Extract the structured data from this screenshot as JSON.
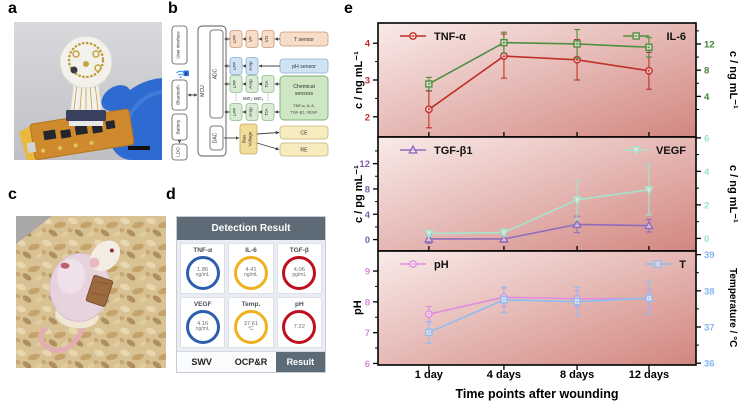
{
  "panel_labels": {
    "a": "a",
    "b": "b",
    "c": "c",
    "d": "d",
    "e": "e"
  },
  "panel_b": {
    "user_interface": "User interface",
    "bluetooth": "Bluetooth",
    "battery": "Battery",
    "ldo": "LDO",
    "mcu": "MCU",
    "adc": "ADC",
    "dac": "DAC",
    "lpf": "LPF",
    "vf": "VF",
    "vd": "VD",
    "amp": "Amp",
    "tia": "TIA",
    "t_sensor": "T sensor",
    "ph_sensor": "pH sensor",
    "chem_line1": "Chemical",
    "chem_line2": "sensors",
    "chem_sub1": "TNF-α, IL-6,",
    "chem_sub2": "TGF-β1, VEGF",
    "we": "WE₁-WE₄",
    "bias_line1": "Bias",
    "bias_line2": "Voltage",
    "ce": "CE",
    "re": "RE"
  },
  "panel_d": {
    "title": "Detection Result",
    "cards": [
      {
        "label": "TNF-α",
        "value": "1.86",
        "unit": "ng/mL",
        "ring": "#2d5fae"
      },
      {
        "label": "IL-6",
        "value": "4.41",
        "unit": "ng/mL",
        "ring": "#f0b11d"
      },
      {
        "label": "TGF-β",
        "value": "4.06",
        "unit": "pg/mL",
        "ring": "#bf0f1e"
      },
      {
        "label": "VEGF",
        "value": "4.16",
        "unit": "ng/mL",
        "ring": "#2d5fae"
      },
      {
        "label": "Temp.",
        "value": "37.61",
        "unit": "°C",
        "ring": "#f0b11d"
      },
      {
        "label": "pH",
        "value": "7.22",
        "unit": "",
        "ring": "#bf0f1e"
      }
    ],
    "tabs": [
      {
        "label": "SWV",
        "active": false
      },
      {
        "label": "OCP&R",
        "active": false
      },
      {
        "label": "Result",
        "active": true
      }
    ]
  },
  "panel_e": {
    "xlabel": "Time points after wounding",
    "x_categories": [
      "1 day",
      "4 days",
      "8 days",
      "12 days"
    ]
  },
  "chart_data": [
    {
      "type": "line",
      "x": [
        "1 day",
        "4 days",
        "8 days",
        "12 days"
      ],
      "left_axis": {
        "label": "c / ng mL⁻¹",
        "color": "#c03028",
        "min": 1.45,
        "max": 4.55,
        "ticks": [
          2,
          3,
          4
        ],
        "minor": [
          2.5,
          3.5
        ]
      },
      "right_axis": {
        "label": "c / ng mL⁻¹",
        "color": "#45803c",
        "min": -2.2,
        "max": 15.2,
        "ticks": [
          4,
          8,
          12
        ],
        "minor": [
          2,
          6,
          10,
          14
        ]
      },
      "series": [
        {
          "name": "TNF-α",
          "axis": "left",
          "marker": "circle",
          "color": "#c03028",
          "values": [
            2.2,
            3.65,
            3.55,
            3.25
          ],
          "errors": [
            0.5,
            0.6,
            0.55,
            0.5
          ]
        },
        {
          "name": "IL-6",
          "axis": "right",
          "marker": "square",
          "color": "#4f8f41",
          "values": [
            5.9,
            12.2,
            12.0,
            11.5
          ],
          "errors": [
            1.0,
            1.6,
            2.2,
            1.5
          ]
        }
      ]
    },
    {
      "type": "line",
      "x": [
        "1 day",
        "4 days",
        "8 days",
        "12 days"
      ],
      "left_axis": {
        "label": "c / pg mL⁻¹",
        "color": "#7e5fae",
        "min": -1.8,
        "max": 16.2,
        "ticks": [
          0,
          4,
          8,
          12
        ],
        "minor": [
          2,
          6,
          10,
          14
        ]
      },
      "right_axis": {
        "label": "c / ng mL⁻¹",
        "color": "#9fe0c9",
        "min": -0.75,
        "max": 6.05,
        "ticks": [
          0,
          2,
          4,
          6
        ],
        "minor": [
          1,
          3,
          5
        ]
      },
      "series": [
        {
          "name": "TGF-β1",
          "axis": "left",
          "marker": "triangle-up",
          "color": "#8f6cbe",
          "values": [
            0.1,
            0.1,
            2.4,
            2.2
          ],
          "errors": [
            0.7,
            0.5,
            1.3,
            1.0
          ]
        },
        {
          "name": "VEGF",
          "axis": "right",
          "marker": "triangle-down",
          "color": "#a5e3cd",
          "values": [
            0.3,
            0.35,
            2.3,
            2.9
          ],
          "errors": [
            0.15,
            0.2,
            1.2,
            1.5
          ]
        }
      ]
    },
    {
      "type": "line",
      "x": [
        "1 day",
        "4 days",
        "8 days",
        "12 days"
      ],
      "left_axis": {
        "label": "pH",
        "color": "#e08ae0",
        "min": 5.95,
        "max": 9.65,
        "ticks": [
          6,
          7,
          8,
          9
        ],
        "minor": [
          6.5,
          7.5,
          8.5
        ]
      },
      "right_axis": {
        "label": "Temperature / °C",
        "color": "#85b5f0",
        "min": 35.95,
        "max": 39.1,
        "ticks": [
          36,
          37,
          38,
          39
        ],
        "minor": [
          36.5,
          37.5,
          38.5
        ]
      },
      "series": [
        {
          "name": "pH",
          "axis": "left",
          "marker": "circle",
          "color": "#df8edf",
          "values": [
            7.6,
            8.15,
            8.1,
            8.1
          ],
          "errors": [
            0.25,
            0.3,
            0.25,
            0.3
          ]
        },
        {
          "name": "T",
          "axis": "right",
          "marker": "square",
          "color": "#8fbdf2",
          "values": [
            36.85,
            37.75,
            37.7,
            37.8
          ],
          "errors": [
            0.3,
            0.35,
            0.4,
            0.45
          ]
        }
      ]
    }
  ]
}
